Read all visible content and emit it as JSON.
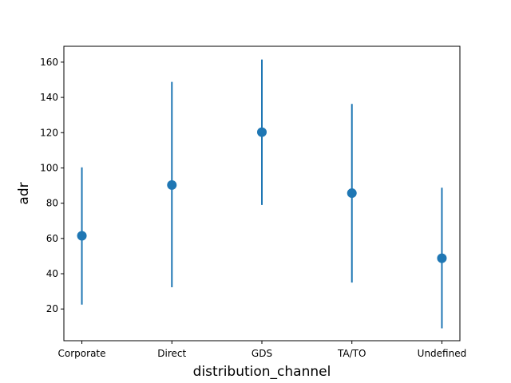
{
  "chart_data": {
    "type": "pointplot",
    "xlabel": "distribution_channel",
    "ylabel": "adr",
    "categories": [
      "Corporate",
      "Direct",
      "GDS",
      "TA/TO",
      "Undefined"
    ],
    "values": [
      61.5,
      90.3,
      120.3,
      85.7,
      48.8
    ],
    "error_low": [
      22.5,
      32.3,
      79.0,
      35.0,
      9.0
    ],
    "error_high": [
      100.3,
      148.8,
      161.5,
      136.3,
      88.8
    ],
    "ylim": [
      2,
      169
    ],
    "yticks": [
      20,
      40,
      60,
      80,
      100,
      120,
      140,
      160
    ],
    "color": "#1f77b4",
    "grid": false
  }
}
